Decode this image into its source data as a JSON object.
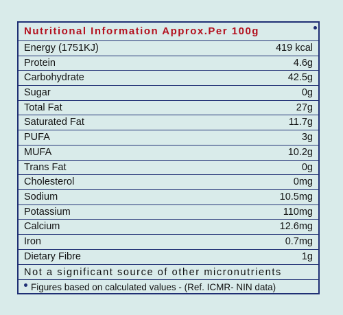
{
  "panel": {
    "title": "Nutritional Information Approx.Per 100g",
    "rows": [
      {
        "name": "Energy (1751KJ)",
        "value": "419 kcal"
      },
      {
        "name": "Protein",
        "value": "4.6g"
      },
      {
        "name": "Carbohydrate",
        "value": "42.5g"
      },
      {
        "name": "Sugar",
        "value": "0g"
      },
      {
        "name": "Total Fat",
        "value": "27g"
      },
      {
        "name": "Saturated Fat",
        "value": "11.7g"
      },
      {
        "name": "PUFA",
        "value": "3g"
      },
      {
        "name": "MUFA",
        "value": "10.2g"
      },
      {
        "name": "Trans Fat",
        "value": "0g"
      },
      {
        "name": "Cholesterol",
        "value": "0mg"
      },
      {
        "name": "Sodium",
        "value": "10.5mg"
      },
      {
        "name": "Potassium",
        "value": "110mg"
      },
      {
        "name": "Calcium",
        "value": "12.6mg"
      },
      {
        "name": "Iron",
        "value": "0.7mg"
      },
      {
        "name": "Dietary Fibre",
        "value": "1g"
      }
    ],
    "note_micronutrients": "Not a significant source of other micronutrients",
    "note_figures": "Figures based on calculated values - (Ref. ICMR- NIN data)"
  }
}
